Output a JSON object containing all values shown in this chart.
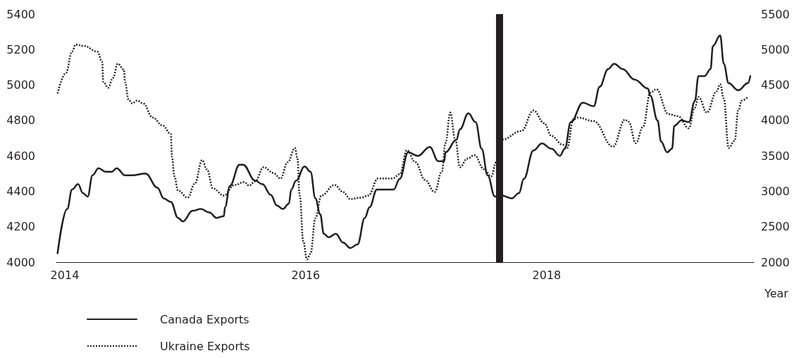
{
  "chart_data": {
    "type": "line",
    "xlabel": "Year",
    "xlim": [
      2013.93,
      2019.72
    ],
    "xticks": [
      2014,
      2016,
      2018
    ],
    "ylim": [
      4000,
      5400
    ],
    "yticks": [
      4000,
      4200,
      4400,
      4600,
      4800,
      5000,
      5200,
      5400
    ],
    "y2lim": [
      2000,
      5500
    ],
    "y2ticks": [
      2000,
      2500,
      3000,
      3500,
      4000,
      4500,
      5000,
      5500
    ],
    "grid": false,
    "legend": "bottom left",
    "marker": "none",
    "ref_lines": [
      {
        "axis": "x",
        "value": 2017.61,
        "color": "#231f20"
      }
    ],
    "series": [
      {
        "name": "Canada Exports",
        "color": "#231f20",
        "line_style": "solid",
        "x": [
          2013.94,
          2014.02,
          2014.06,
          2014.11,
          2014.15,
          2014.19,
          2014.23,
          2014.28,
          2014.34,
          2014.39,
          2014.43,
          2014.5,
          2014.56,
          2014.67,
          2014.77,
          2014.82,
          2014.88,
          2014.94,
          2014.98,
          2015.06,
          2015.13,
          2015.2,
          2015.26,
          2015.32,
          2015.33,
          2015.37,
          2015.45,
          2015.48,
          2015.58,
          2015.64,
          2015.71,
          2015.76,
          2015.81,
          2015.86,
          2015.88,
          2015.92,
          2015.99,
          2016.04,
          2016.08,
          2016.12,
          2016.15,
          2016.19,
          2016.25,
          2016.31,
          2016.37,
          2016.43,
          2016.49,
          2016.53,
          2016.59,
          2016.66,
          2016.73,
          2016.78,
          2016.85,
          2016.93,
          2017.03,
          2017.1,
          2017.15,
          2017.16,
          2017.25,
          2017.28,
          2017.35,
          2017.41,
          2017.46,
          2017.51,
          2017.57,
          2017.61,
          2017.71,
          2017.77,
          2017.81,
          2017.89,
          2017.96,
          2018.04,
          2018.11,
          2018.15,
          2018.2,
          2018.3,
          2018.39,
          2018.44,
          2018.51,
          2018.56,
          2018.63,
          2018.73,
          2018.84,
          2018.86,
          2018.92,
          2018.95,
          2019.0,
          2019.04,
          2019.06,
          2019.12,
          2019.18,
          2019.23,
          2019.26,
          2019.31,
          2019.36,
          2019.38,
          2019.44,
          2019.47,
          2019.51,
          2019.59,
          2019.67,
          2019.69
        ],
        "values": [
          4050,
          4300,
          4410,
          4440,
          4390,
          4370,
          4490,
          4530,
          4510,
          4510,
          4530,
          4490,
          4490,
          4500,
          4420,
          4360,
          4340,
          4250,
          4230,
          4290,
          4300,
          4280,
          4250,
          4260,
          4310,
          4430,
          4550,
          4550,
          4460,
          4440,
          4380,
          4320,
          4300,
          4330,
          4410,
          4460,
          4540,
          4510,
          4360,
          4270,
          4160,
          4140,
          4160,
          4110,
          4080,
          4100,
          4250,
          4310,
          4410,
          4410,
          4410,
          4470,
          4620,
          4600,
          4650,
          4570,
          4570,
          4620,
          4690,
          4750,
          4840,
          4790,
          4640,
          4490,
          4370,
          4380,
          4360,
          4390,
          4470,
          4630,
          4670,
          4640,
          4600,
          4640,
          4790,
          4900,
          4880,
          4990,
          5090,
          5120,
          5090,
          5030,
          4980,
          4940,
          4800,
          4680,
          4620,
          4640,
          4770,
          4800,
          4790,
          4910,
          5050,
          5050,
          5090,
          5220,
          5280,
          5120,
          5010,
          4970,
          5010,
          5050
        ]
      },
      {
        "name": "Ukraine Exports",
        "color": "#231f20",
        "line_style": "dotted",
        "axis": "y2",
        "x": [
          2013.94,
          2014.01,
          2014.06,
          2014.09,
          2014.16,
          2014.27,
          2014.31,
          2014.32,
          2014.36,
          2014.4,
          2014.44,
          2014.49,
          2014.5,
          2014.53,
          2014.56,
          2014.6,
          2014.65,
          2014.73,
          2014.81,
          2014.88,
          2014.89,
          2014.91,
          2014.94,
          2015.02,
          2015.08,
          2015.14,
          2015.18,
          2015.23,
          2015.32,
          2015.41,
          2015.49,
          2015.53,
          2015.58,
          2015.65,
          2015.73,
          2015.79,
          2015.85,
          2015.91,
          2015.93,
          2015.95,
          2015.98,
          2016.01,
          2016.04,
          2016.08,
          2016.13,
          2016.24,
          2016.31,
          2016.37,
          2016.46,
          2016.52,
          2016.6,
          2016.72,
          2016.78,
          2016.84,
          2016.91,
          2016.99,
          2017.07,
          2017.13,
          2017.16,
          2017.2,
          2017.24,
          2017.28,
          2017.34,
          2017.4,
          2017.48,
          2017.54,
          2017.58,
          2017.63,
          2017.79,
          2017.89,
          2017.98,
          2018.04,
          2018.13,
          2018.17,
          2018.22,
          2018.26,
          2018.39,
          2018.55,
          2018.65,
          2018.68,
          2018.74,
          2018.8,
          2018.86,
          2018.91,
          2019.01,
          2019.09,
          2019.18,
          2019.23,
          2019.26,
          2019.33,
          2019.41,
          2019.44,
          2019.47,
          2019.51,
          2019.56,
          2019.59,
          2019.62,
          2019.67
        ],
        "values": [
          4380,
          4670,
          4970,
          5070,
          5050,
          4970,
          4830,
          4540,
          4460,
          4600,
          4800,
          4720,
          4540,
          4290,
          4240,
          4280,
          4240,
          4040,
          3930,
          3810,
          3480,
          3210,
          3010,
          2910,
          3110,
          3440,
          3310,
          3040,
          2940,
          3090,
          3130,
          3080,
          3140,
          3340,
          3260,
          3180,
          3410,
          3610,
          3480,
          2940,
          2290,
          2040,
          2120,
          2620,
          2940,
          3090,
          2990,
          2890,
          2910,
          2940,
          3180,
          3180,
          3240,
          3580,
          3410,
          3160,
          2990,
          3280,
          3680,
          4110,
          3740,
          3340,
          3460,
          3510,
          3310,
          3210,
          3410,
          3730,
          3850,
          4140,
          3960,
          3780,
          3660,
          3610,
          4010,
          4040,
          3990,
          3630,
          4010,
          3980,
          3680,
          3910,
          4390,
          4440,
          4090,
          4060,
          3890,
          4180,
          4330,
          4110,
          4410,
          4510,
          4310,
          3610,
          3710,
          4140,
          4280,
          4330
        ]
      }
    ]
  }
}
